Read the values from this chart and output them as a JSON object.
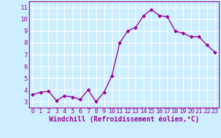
{
  "x": [
    0,
    1,
    2,
    3,
    4,
    5,
    6,
    7,
    8,
    9,
    10,
    11,
    12,
    13,
    14,
    15,
    16,
    17,
    18,
    19,
    20,
    21,
    22,
    23
  ],
  "y": [
    3.6,
    3.8,
    3.9,
    3.1,
    3.5,
    3.4,
    3.2,
    4.0,
    3.0,
    3.8,
    5.2,
    8.0,
    9.0,
    9.3,
    10.3,
    10.8,
    10.3,
    10.2,
    9.0,
    8.8,
    8.5,
    8.5,
    7.8,
    7.2
  ],
  "line_color": "#990099",
  "marker": "D",
  "marker_size": 2.5,
  "marker_color": "#990099",
  "bg_color": "#cceeff",
  "grid_color": "#ffffff",
  "xlabel": "Windchill (Refroidissement éolien,°C)",
  "xlabel_color": "#990099",
  "tick_color": "#990099",
  "xlim": [
    -0.5,
    23.5
  ],
  "ylim": [
    2.5,
    11.5
  ],
  "yticks": [
    3,
    4,
    5,
    6,
    7,
    8,
    9,
    10,
    11
  ],
  "xticks": [
    0,
    1,
    2,
    3,
    4,
    5,
    6,
    7,
    8,
    9,
    10,
    11,
    12,
    13,
    14,
    15,
    16,
    17,
    18,
    19,
    20,
    21,
    22,
    23
  ],
  "spine_color": "#990099",
  "tick_fontsize": 6.5,
  "xlabel_fontsize": 7,
  "line_width": 1.0
}
